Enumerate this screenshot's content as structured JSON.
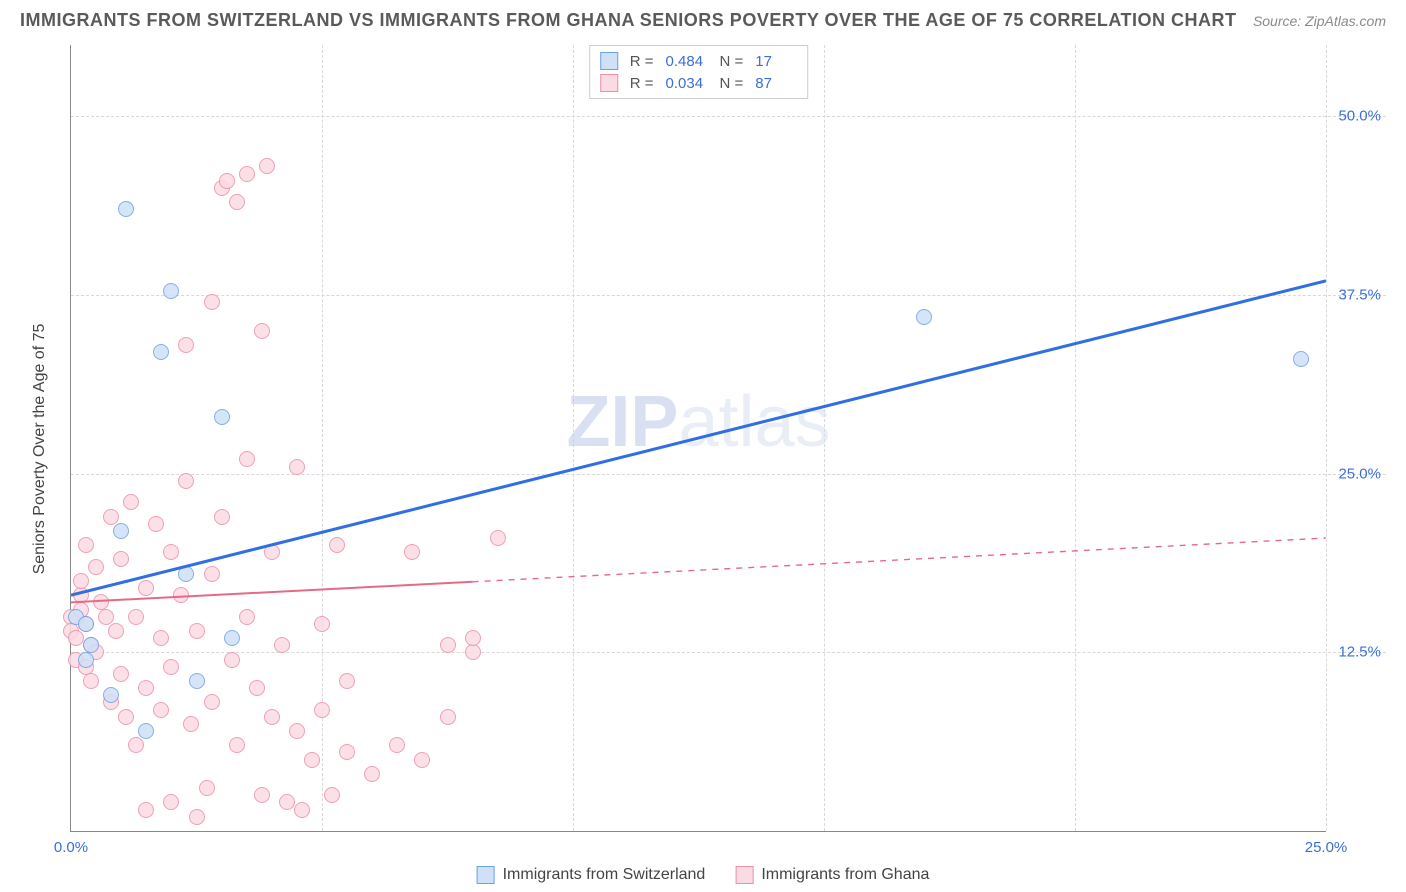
{
  "title": "IMMIGRANTS FROM SWITZERLAND VS IMMIGRANTS FROM GHANA SENIORS POVERTY OVER THE AGE OF 75 CORRELATION CHART",
  "source": "Source: ZipAtlas.com",
  "watermark_bold": "ZIP",
  "watermark_light": "atlas",
  "ylabel": "Seniors Poverty Over the Age of 75",
  "xlim": [
    0,
    25
  ],
  "ylim": [
    0,
    55
  ],
  "yticks": [
    {
      "v": 12.5,
      "label": "12.5%"
    },
    {
      "v": 25.0,
      "label": "25.0%"
    },
    {
      "v": 37.5,
      "label": "37.5%"
    },
    {
      "v": 50.0,
      "label": "50.0%"
    }
  ],
  "xticks_grid": [
    5,
    10,
    15,
    20,
    25
  ],
  "xticks_labeled": [
    {
      "v": 0,
      "label": "0.0%"
    },
    {
      "v": 25,
      "label": "25.0%"
    }
  ],
  "series_a": {
    "name": "Immigrants from Switzerland",
    "color_fill": "#cfe0f7",
    "color_stroke": "#6fa2e3",
    "marker_size": 16,
    "r_label": "R =",
    "r_value": "0.484",
    "n_label": "N =",
    "n_value": "17",
    "trend": {
      "x1": 0,
      "y1": 16.5,
      "x2": 25,
      "y2": 38.5,
      "solid_until_x": 25,
      "color": "#2f6fe0",
      "width": 3
    },
    "points": [
      [
        0.1,
        15.0
      ],
      [
        0.3,
        14.5
      ],
      [
        0.3,
        12.0
      ],
      [
        0.4,
        13.0
      ],
      [
        0.8,
        9.5
      ],
      [
        1.0,
        21.0
      ],
      [
        1.1,
        43.5
      ],
      [
        1.5,
        7.0
      ],
      [
        1.8,
        33.5
      ],
      [
        2.0,
        37.8
      ],
      [
        2.3,
        18.0
      ],
      [
        2.5,
        10.5
      ],
      [
        3.0,
        29.0
      ],
      [
        3.2,
        13.5
      ],
      [
        17.0,
        36.0
      ],
      [
        24.5,
        33.0
      ]
    ]
  },
  "series_b": {
    "name": "Immigrants from Ghana",
    "color_fill": "#fbdbe3",
    "color_stroke": "#ef8fa8",
    "marker_size": 16,
    "r_label": "R =",
    "r_value": "0.034",
    "n_label": "N =",
    "n_value": "87",
    "trend": {
      "x1": 0,
      "y1": 16.0,
      "x2": 25,
      "y2": 20.5,
      "solid_until_x": 8,
      "color": "#e56a8a",
      "width": 2
    },
    "points": [
      [
        0.0,
        15.0
      ],
      [
        0.0,
        14.0
      ],
      [
        0.1,
        13.5
      ],
      [
        0.1,
        12.0
      ],
      [
        0.2,
        15.5
      ],
      [
        0.2,
        16.5
      ],
      [
        0.2,
        17.5
      ],
      [
        0.3,
        14.5
      ],
      [
        0.3,
        11.5
      ],
      [
        0.3,
        20.0
      ],
      [
        0.4,
        13.0
      ],
      [
        0.4,
        10.5
      ],
      [
        0.5,
        12.5
      ],
      [
        0.5,
        18.5
      ],
      [
        0.6,
        16.0
      ],
      [
        0.7,
        15.0
      ],
      [
        0.8,
        22.0
      ],
      [
        0.8,
        9.0
      ],
      [
        0.9,
        14.0
      ],
      [
        1.0,
        19.0
      ],
      [
        1.0,
        11.0
      ],
      [
        1.1,
        8.0
      ],
      [
        1.2,
        23.0
      ],
      [
        1.3,
        15.0
      ],
      [
        1.3,
        6.0
      ],
      [
        1.5,
        17.0
      ],
      [
        1.5,
        10.0
      ],
      [
        1.5,
        1.5
      ],
      [
        1.7,
        21.5
      ],
      [
        1.8,
        13.5
      ],
      [
        1.8,
        8.5
      ],
      [
        2.0,
        19.5
      ],
      [
        2.0,
        11.5
      ],
      [
        2.0,
        2.0
      ],
      [
        2.2,
        16.5
      ],
      [
        2.3,
        24.5
      ],
      [
        2.3,
        34.0
      ],
      [
        2.4,
        7.5
      ],
      [
        2.5,
        14.0
      ],
      [
        2.5,
        1.0
      ],
      [
        2.7,
        3.0
      ],
      [
        2.8,
        18.0
      ],
      [
        2.8,
        9.0
      ],
      [
        2.8,
        37.0
      ],
      [
        3.0,
        22.0
      ],
      [
        3.0,
        45.0
      ],
      [
        3.1,
        45.5
      ],
      [
        3.2,
        12.0
      ],
      [
        3.3,
        6.0
      ],
      [
        3.3,
        44.0
      ],
      [
        3.5,
        26.0
      ],
      [
        3.5,
        46.0
      ],
      [
        3.5,
        15.0
      ],
      [
        3.7,
        10.0
      ],
      [
        3.8,
        2.5
      ],
      [
        3.8,
        35.0
      ],
      [
        3.9,
        46.5
      ],
      [
        4.0,
        19.5
      ],
      [
        4.0,
        8.0
      ],
      [
        4.2,
        13.0
      ],
      [
        4.3,
        2.0
      ],
      [
        4.5,
        25.5
      ],
      [
        4.5,
        7.0
      ],
      [
        4.6,
        1.5
      ],
      [
        4.8,
        5.0
      ],
      [
        5.0,
        14.5
      ],
      [
        5.0,
        8.5
      ],
      [
        5.2,
        2.5
      ],
      [
        5.3,
        20.0
      ],
      [
        5.5,
        10.5
      ],
      [
        5.5,
        5.5
      ],
      [
        6.0,
        4.0
      ],
      [
        6.5,
        6.0
      ],
      [
        6.8,
        19.5
      ],
      [
        7.0,
        5.0
      ],
      [
        7.5,
        13.0
      ],
      [
        7.5,
        8.0
      ],
      [
        8.0,
        12.5
      ],
      [
        8.0,
        13.5
      ],
      [
        8.5,
        20.5
      ]
    ]
  },
  "bottom_legend": [
    {
      "series": "a"
    },
    {
      "series": "b"
    }
  ]
}
